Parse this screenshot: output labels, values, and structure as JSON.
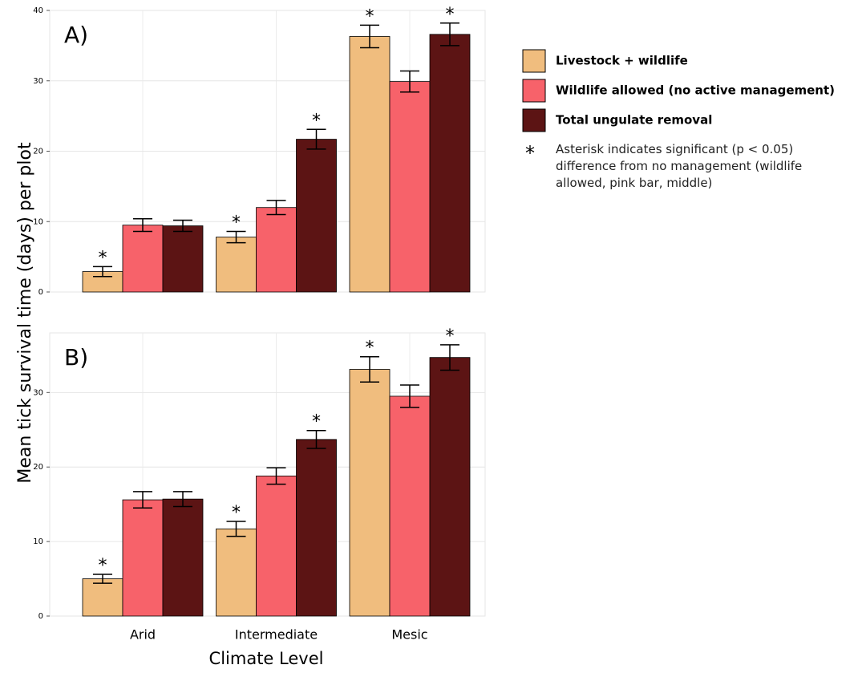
{
  "y_label": "Mean tick survival time (days) per plot",
  "x_label": "Climate Level",
  "significance_marker": "*",
  "note": "Asterisk indicates significant (p < 0.05) difference from no management (wildlife allowed, pink bar, middle)",
  "chart_data": [
    {
      "type": "bar",
      "panel_label": "A)",
      "categories": [
        null,
        null,
        null
      ],
      "ylim": [
        0,
        40
      ],
      "yticks": [
        0,
        10,
        20,
        30,
        40
      ],
      "grid": true,
      "series": [
        {
          "name": "Livestock + wildlife",
          "color": "#f0bd7e",
          "values": [
            2.9,
            7.8,
            36.3
          ],
          "errors": [
            0.7,
            0.8,
            1.6
          ],
          "significant": [
            true,
            true,
            true
          ]
        },
        {
          "name": "Wildlife allowed (no active management)",
          "color": "#f7626a",
          "values": [
            9.5,
            12.0,
            29.9
          ],
          "errors": [
            0.9,
            1.0,
            1.5
          ],
          "significant": [
            false,
            false,
            false
          ]
        },
        {
          "name": "Total ungulate removal",
          "color": "#5c1414",
          "values": [
            9.4,
            21.7,
            36.6
          ],
          "errors": [
            0.8,
            1.4,
            1.6
          ],
          "significant": [
            false,
            true,
            true
          ]
        }
      ]
    },
    {
      "type": "bar",
      "panel_label": "B)",
      "categories": [
        "Arid",
        "Intermediate",
        "Mesic"
      ],
      "ylim": [
        0,
        38
      ],
      "yticks": [
        0,
        10,
        20,
        30
      ],
      "grid": true,
      "series": [
        {
          "color": "#f0bd7e",
          "values": [
            5.0,
            11.7,
            33.1
          ],
          "errors": [
            0.6,
            1.0,
            1.7
          ],
          "significant": [
            true,
            true,
            true
          ]
        },
        {
          "color": "#f7626a",
          "values": [
            15.6,
            18.8,
            29.5
          ],
          "errors": [
            1.1,
            1.1,
            1.5
          ],
          "significant": [
            false,
            false,
            false
          ]
        },
        {
          "color": "#5c1414",
          "values": [
            15.7,
            23.7,
            34.7
          ],
          "errors": [
            1.0,
            1.2,
            1.7
          ],
          "significant": [
            false,
            true,
            true
          ]
        }
      ]
    }
  ]
}
